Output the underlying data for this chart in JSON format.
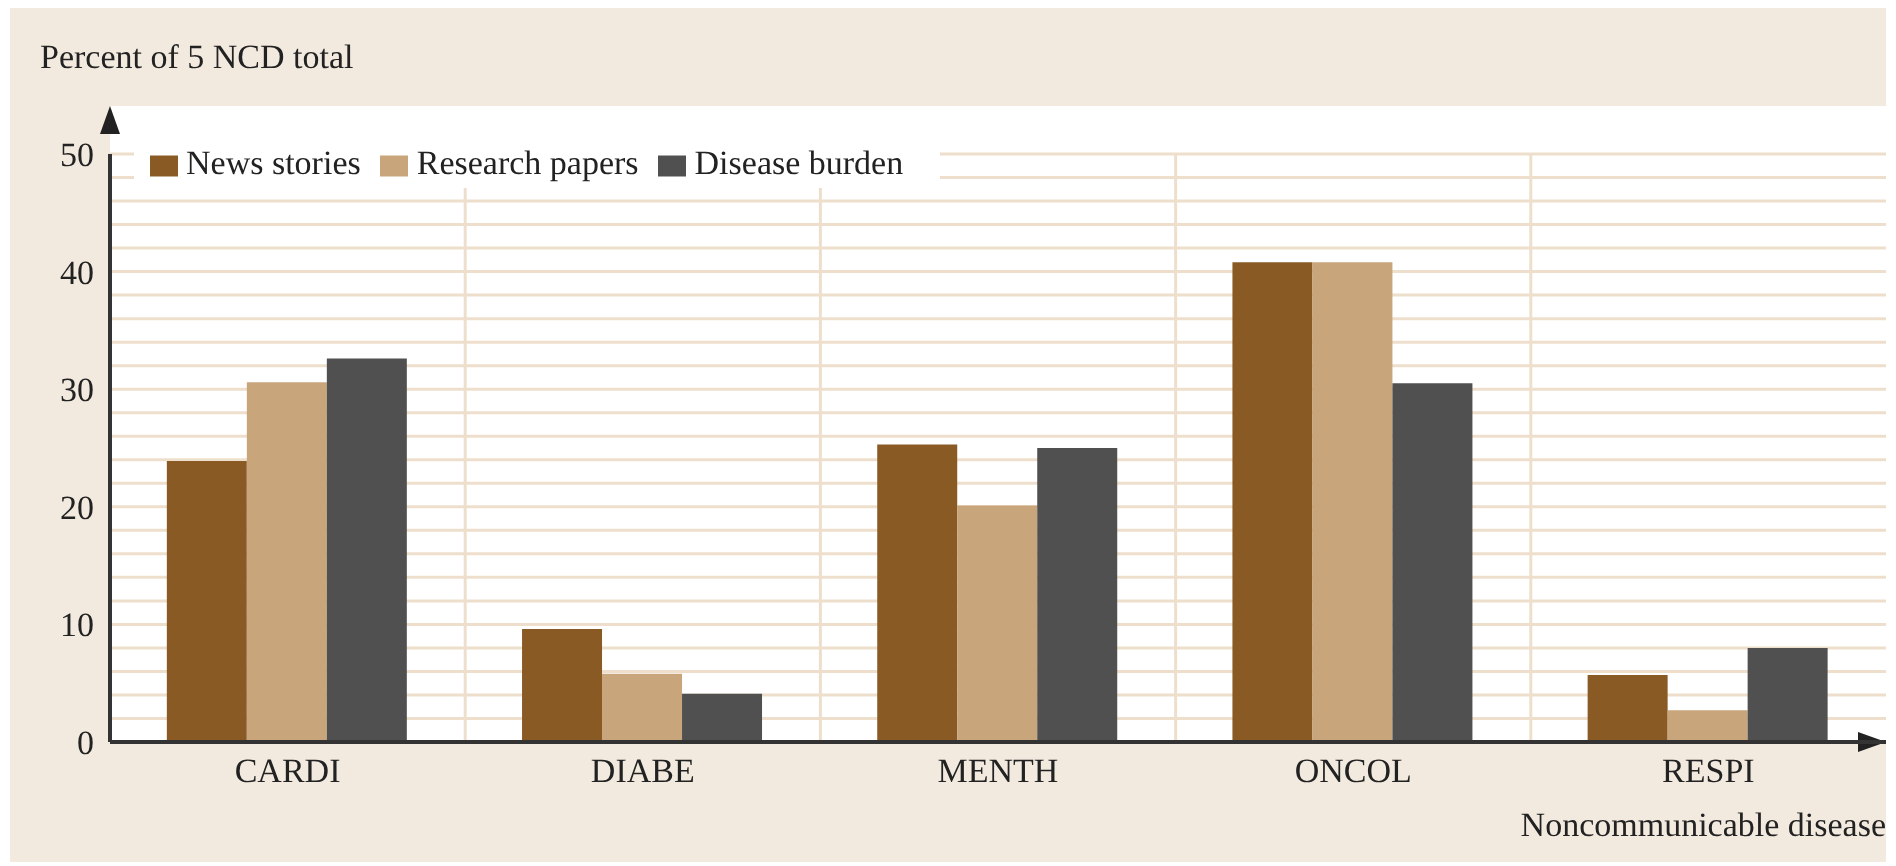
{
  "chart_data": {
    "type": "bar",
    "ylabel": "Percent of 5 NCD total",
    "xlabel": "Noncommunicable disease",
    "categories": [
      "CARDI",
      "DIABE",
      "MENTH",
      "ONCOL",
      "RESPI"
    ],
    "series": [
      {
        "name": "News stories",
        "color": "#8a5a24",
        "values": [
          23.9,
          9.6,
          25.3,
          40.8,
          5.7
        ]
      },
      {
        "name": "Research papers",
        "color": "#c9a57b",
        "values": [
          30.6,
          5.8,
          20.1,
          40.8,
          2.7
        ]
      },
      {
        "name": "Disease burden",
        "color": "#505050",
        "values": [
          32.6,
          4.1,
          25.0,
          30.5,
          8.0
        ]
      }
    ],
    "ylim": [
      0,
      50
    ],
    "yticks": [
      0,
      {
        "value": 2,
        "label": null
      },
      {
        "value": 4,
        "label": null
      },
      {
        "value": 6,
        "label": null
      },
      {
        "value": 8,
        "label": null
      },
      10,
      {
        "value": 12,
        "label": null
      },
      {
        "value": 14,
        "label": null
      },
      {
        "value": 16,
        "label": null
      },
      {
        "value": 18,
        "label": null
      },
      20,
      {
        "value": 22,
        "label": null
      },
      {
        "value": 24,
        "label": null
      },
      {
        "value": 26,
        "label": null
      },
      {
        "value": 28,
        "label": null
      },
      30,
      {
        "value": 32,
        "label": null
      },
      {
        "value": 34,
        "label": null
      },
      {
        "value": 36,
        "label": null
      },
      {
        "value": 38,
        "label": null
      },
      40,
      {
        "value": 42,
        "label": null
      },
      {
        "value": 44,
        "label": null
      },
      {
        "value": 46,
        "label": null
      },
      {
        "value": 48,
        "label": null
      },
      50
    ],
    "grid": true,
    "legend": "top left"
  }
}
